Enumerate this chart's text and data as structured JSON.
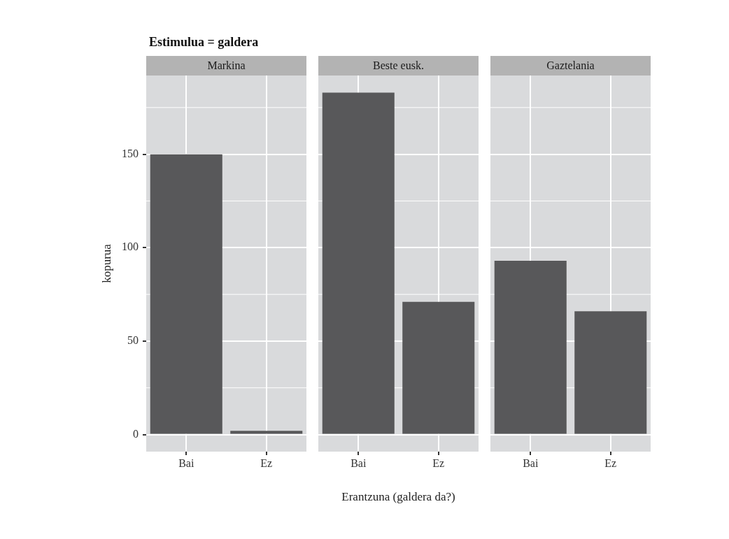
{
  "chart_data": [
    {
      "type": "bar",
      "title": "Estimulua = galdera",
      "subtitle": "Markina",
      "ylabel": "kopurua",
      "categories": [
        "Bai",
        "Ez"
      ],
      "values": [
        150,
        2
      ],
      "color": "#58585a",
      "ylim": [
        -9.15,
        192.15
      ],
      "yticks": [
        0,
        50,
        100,
        150
      ],
      "grid": true
    },
    {
      "type": "bar",
      "subtitle": "Beste eusk.",
      "xlabel": "Erantzuna (galdera da?)",
      "categories": [
        "Bai",
        "Ez"
      ],
      "values": [
        183,
        71
      ],
      "color": "#58585a",
      "ylim": [
        -9.15,
        192.15
      ],
      "yticks": [
        0,
        50,
        100,
        150
      ],
      "grid": true,
      "tick_labels": "x"
    },
    {
      "type": "bar",
      "subtitle": "Gaztelania",
      "categories": [
        "Bai",
        "Ez"
      ],
      "values": [
        93,
        66
      ],
      "color": "#58585a",
      "ylim": [
        -9.15,
        192.15
      ],
      "yticks": [
        0,
        50,
        100,
        150
      ],
      "grid": true,
      "tick_labels": "x"
    }
  ]
}
